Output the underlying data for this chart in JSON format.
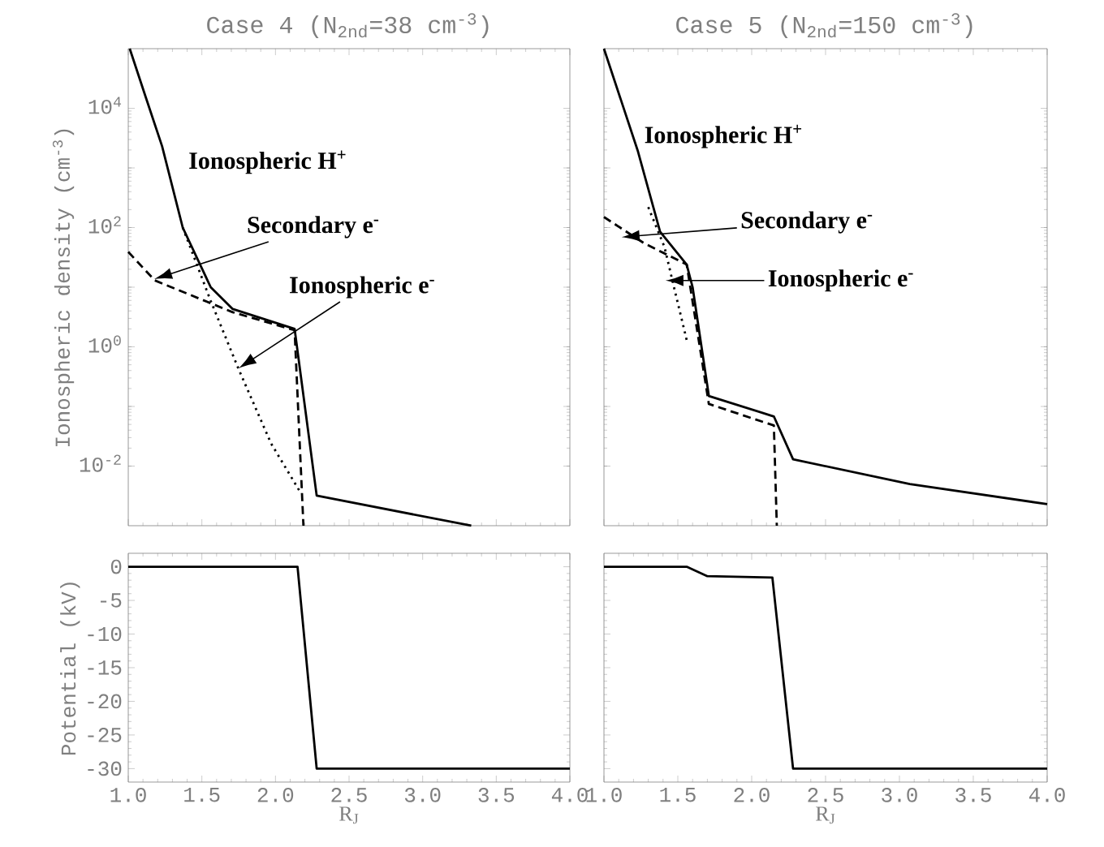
{
  "chart_data": [
    {
      "type": "line",
      "title": "Case 4 (N$_{2nd}$=38 cm$^{-3}$)",
      "ylabel": "Ionospheric density (cm$^{-3}$)",
      "log": "y",
      "xlim": [
        1.0,
        4.0
      ],
      "ylim": [
        0.001,
        100000
      ],
      "xticks": [
        1.0,
        1.5,
        2.0,
        2.5,
        3.0,
        3.5,
        4.0
      ],
      "yticks": [
        {
          "value": 0.01,
          "label": "10$^{-2}$"
        },
        {
          "value": 0.1,
          "label": null
        },
        {
          "value": 1,
          "label": "10$^{0}$"
        },
        {
          "value": 10,
          "label": null
        },
        {
          "value": 100,
          "label": "10$^{2}$"
        },
        {
          "value": 1000,
          "label": null
        },
        {
          "value": 10000,
          "label": "10$^{4}$"
        }
      ],
      "tick_labels": "y",
      "series": [
        {
          "name": "Ionospheric H$^{+}$",
          "color": "#000000",
          "line_style": "solid",
          "x": [
            1.01,
            1.12,
            1.23,
            1.37,
            1.56,
            1.71,
            2.13,
            2.28,
            3.33
          ],
          "values": [
            100000,
            15000,
            2300,
            100,
            10,
            4.3,
            2.0,
            0.0032,
            0.001
          ]
        },
        {
          "color": "#000000",
          "line_style": "dashed",
          "x": [
            1.0,
            1.18,
            1.71,
            2.13,
            2.19
          ],
          "values": [
            39,
            13,
            3.8,
            1.9,
            0.001
          ]
        },
        {
          "color": "#000000",
          "line_style": "dotted",
          "x": [
            1.37,
            1.56,
            1.75,
            1.97,
            2.17
          ],
          "values": [
            100,
            5.9,
            0.42,
            0.024,
            0.0036
          ]
        }
      ],
      "annotations": [
        "Secondary e$^{-}$",
        "Ionospheric e$^{-}$"
      ]
    },
    {
      "type": "line",
      "title": "Case 5 (N$_{2nd}$=150 cm$^{-3}$)",
      "log": "y",
      "xlim": [
        1.0,
        4.0
      ],
      "ylim": [
        0.001,
        100000
      ],
      "xticks": [
        1.0,
        1.5,
        2.0,
        2.5,
        3.0,
        3.5,
        4.0
      ],
      "yticks": [
        0.01,
        0.1,
        1,
        10,
        100,
        1000,
        10000
      ],
      "tick_labels": false,
      "series": [
        {
          "name": "Ionospheric H$^{+}$",
          "color": "#000000",
          "line_style": "solid",
          "x": [
            1.0,
            1.23,
            1.38,
            1.56,
            1.6,
            1.71,
            2.15,
            2.28,
            3.07,
            4.0
          ],
          "values": [
            100000,
            1900,
            85,
            24,
            10,
            0.15,
            0.068,
            0.013,
            0.005,
            0.0023
          ]
        },
        {
          "color": "#000000",
          "line_style": "dashed",
          "x": [
            1.0,
            1.27,
            1.56,
            1.71,
            2.15,
            2.17
          ],
          "values": [
            150,
            55,
            24,
            0.11,
            0.048,
            0.001
          ]
        },
        {
          "color": "#000000",
          "line_style": "dotted",
          "x": [
            1.3,
            1.41,
            1.47,
            1.56
          ],
          "values": [
            220,
            47,
            11,
            1.3
          ]
        }
      ],
      "annotations": [
        "Secondary e$^{-}$",
        "Ionospheric e$^{-}$"
      ]
    },
    {
      "type": "line",
      "xlabel": "R$_{J}$",
      "ylabel": "Potential (kV)",
      "xlim": [
        1.0,
        4.0
      ],
      "ylim": [
        -32,
        2
      ],
      "xticks": [
        {
          "value": 1.0,
          "label": "1.0"
        },
        {
          "value": 1.5,
          "label": "1.5"
        },
        {
          "value": 2.0,
          "label": "2.0"
        },
        {
          "value": 2.5,
          "label": "2.5"
        },
        {
          "value": 3.0,
          "label": "3.0"
        },
        {
          "value": 3.5,
          "label": "3.5"
        },
        {
          "value": 4.0,
          "label": "4.0"
        }
      ],
      "yticks": [
        0,
        -5,
        -10,
        -15,
        -20,
        -25,
        -30
      ],
      "series": [
        {
          "color": "#000000",
          "line_style": "solid",
          "x": [
            1.0,
            2.15,
            2.28,
            4.0
          ],
          "values": [
            0,
            0,
            -30,
            -30
          ]
        }
      ]
    },
    {
      "type": "line",
      "xlabel": "R$_{J}$",
      "xlim": [
        1.0,
        4.0
      ],
      "ylim": [
        -32,
        2
      ],
      "xticks": [
        {
          "value": 1.0,
          "label": "1.0"
        },
        {
          "value": 1.5,
          "label": "1.5"
        },
        {
          "value": 2.0,
          "label": "2.0"
        },
        {
          "value": 2.5,
          "label": "2.5"
        },
        {
          "value": 3.0,
          "label": "3.0"
        },
        {
          "value": 3.5,
          "label": "3.5"
        },
        {
          "value": 4.0,
          "label": "4.0"
        }
      ],
      "yticks": [
        0,
        -5,
        -10,
        -15,
        -20,
        -25,
        -30
      ],
      "tick_labels": "x",
      "series": [
        {
          "color": "#000000",
          "line_style": "solid",
          "x": [
            1.0,
            1.56,
            1.7,
            2.14,
            2.28,
            4.0
          ],
          "values": [
            0,
            0,
            -1.4,
            -1.6,
            -30,
            -30
          ]
        }
      ]
    }
  ]
}
